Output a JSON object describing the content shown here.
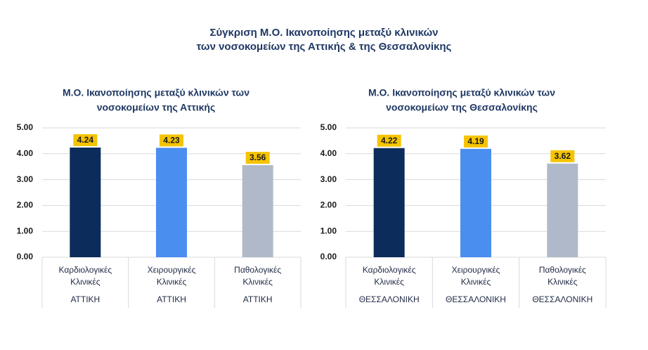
{
  "title": [
    "Σύγκριση Μ.Ο. Ικανοποίησης μεταξύ κλινικών",
    "των νοσοκομείων της Αττικής & της Θεσσαλονίκης"
  ],
  "chart_data": [
    {
      "type": "bar",
      "title": [
        "Μ.Ο. Ικανοποίησης μεταξύ κλινικών των",
        "νοσοκομείων της Αττικής"
      ],
      "categories": [
        [
          "Καρδιολογικές",
          "Κλινικές"
        ],
        [
          "Χειρουργικές",
          "Κλινικές"
        ],
        [
          "Παθολογικές",
          "Κλινικές"
        ]
      ],
      "groups": [
        "ΑΤΤΙΚΗ",
        "ΑΤΤΙΚΗ",
        "ΑΤΤΙΚΗ"
      ],
      "values": [
        4.24,
        4.23,
        3.56
      ],
      "colors": [
        "#0c2c5c",
        "#4a8ef0",
        "#b0b9c9"
      ],
      "label_color": "#f5c400",
      "ylim": [
        0,
        5
      ],
      "yticks": [
        {
          "value": 0,
          "label": "0.00"
        },
        {
          "value": 1,
          "label": "1.00"
        },
        {
          "value": 2,
          "label": "2.00"
        },
        {
          "value": 3,
          "label": "3.00"
        },
        {
          "value": 4,
          "label": "4.00"
        },
        {
          "value": 5,
          "label": "5.00"
        }
      ],
      "grid": true
    },
    {
      "type": "bar",
      "title": [
        "Μ.Ο. Ικανοποίησης μεταξύ κλινικών των",
        "νοσοκομείων της Θεσσαλονίκης"
      ],
      "categories": [
        [
          "Καρδιολογικές",
          "Κλινικές"
        ],
        [
          "Χειρουργικές",
          "Κλινικές"
        ],
        [
          "Παθολογικές",
          "Κλινικές"
        ]
      ],
      "groups": [
        "ΘΕΣΣΑΛΟΝΙΚΗ",
        "ΘΕΣΣΑΛΟΝΙΚΗ",
        "ΘΕΣΣΑΛΟΝΙΚΗ"
      ],
      "values": [
        4.22,
        4.19,
        3.62
      ],
      "colors": [
        "#0c2c5c",
        "#4a8ef0",
        "#b0b9c9"
      ],
      "label_color": "#f5c400",
      "ylim": [
        0,
        5
      ],
      "yticks": [
        {
          "value": 0,
          "label": "0.00"
        },
        {
          "value": 1,
          "label": "1.00"
        },
        {
          "value": 2,
          "label": "2.00"
        },
        {
          "value": 3,
          "label": "3.00"
        },
        {
          "value": 4,
          "label": "4.00"
        },
        {
          "value": 5,
          "label": "5.00"
        }
      ],
      "grid": true
    }
  ]
}
